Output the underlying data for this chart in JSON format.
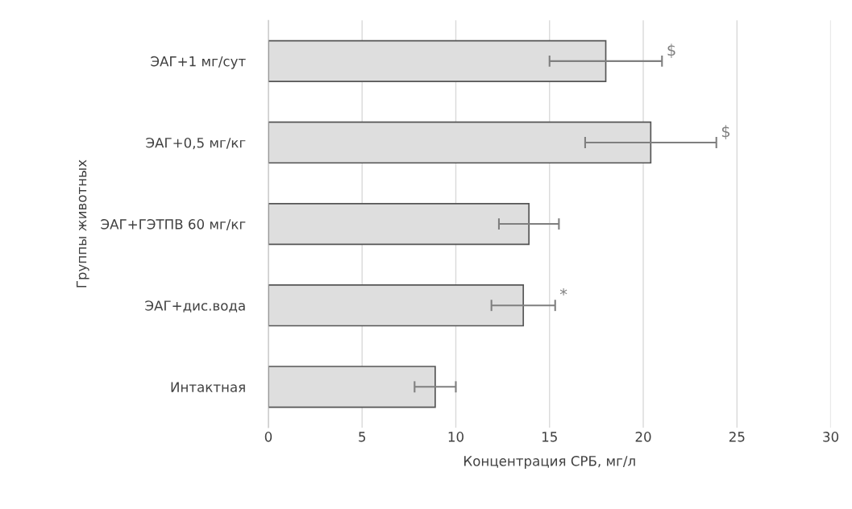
{
  "chart_data": {
    "type": "bar",
    "orientation": "horizontal",
    "xlabel": "Концентрация СРБ, мг/л",
    "ylabel": "Группы животных",
    "categories": [
      "ЭАГ+1 мг/сут",
      "ЭАГ+0,5 мг/кг",
      "ЭАГ+ГЭТПВ 60 мг/кг",
      "ЭАГ+дис.вода",
      "Интактная"
    ],
    "values": [
      18.0,
      20.4,
      13.9,
      13.6,
      8.9
    ],
    "errors": [
      [
        15.0,
        21.0
      ],
      [
        16.9,
        23.9
      ],
      [
        12.3,
        15.5
      ],
      [
        11.9,
        15.3
      ],
      [
        7.8,
        10.0
      ]
    ],
    "color": "#dedede",
    "xlim": [
      0,
      30
    ],
    "xticks": [
      0,
      5,
      10,
      15,
      20,
      25,
      30
    ],
    "grid": "x",
    "annotations": [
      {
        "text": "$",
        "x": 21.0,
        "y": "ЭАГ+1 мг/сут"
      },
      {
        "text": "$",
        "x": 23.9,
        "y": "ЭАГ+0,5 мг/кг"
      },
      {
        "text": "*",
        "x": 15.3,
        "y": "ЭАГ+дис.вода"
      }
    ]
  }
}
